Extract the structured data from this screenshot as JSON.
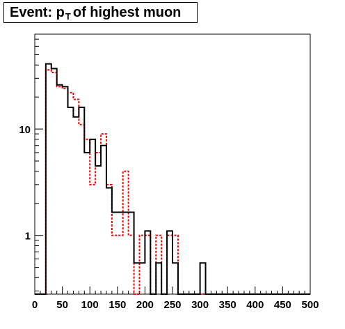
{
  "chart_data": {
    "type": "histogram",
    "title": {
      "prefix": "Event: p",
      "sub": "T",
      "suffix": "of highest muon"
    },
    "xlabel": "",
    "ylabel": "",
    "log_y": true,
    "xlim": [
      0,
      500
    ],
    "ylim": [
      0.28,
      78
    ],
    "x_ticks": [
      0,
      50,
      100,
      150,
      200,
      250,
      300,
      350,
      400,
      450,
      500
    ],
    "x_tick_labels": [
      "0",
      "50",
      "100",
      "150",
      "200",
      "250",
      "300",
      "350",
      "400",
      "450",
      "500"
    ],
    "y_ticks": [
      1,
      10
    ],
    "y_tick_labels": [
      "1",
      "10"
    ],
    "grid": false,
    "bin_edges": [
      0,
      10,
      20,
      30,
      40,
      50,
      60,
      70,
      80,
      90,
      100,
      110,
      120,
      130,
      140,
      150,
      160,
      170,
      180,
      190,
      200,
      210,
      220,
      230,
      240,
      250,
      260,
      270,
      280,
      290,
      300,
      310,
      320,
      330,
      340,
      350,
      360,
      370,
      380,
      390,
      400,
      410,
      420,
      430,
      440,
      450,
      460,
      470,
      480,
      490,
      500
    ],
    "series": [
      {
        "name": "",
        "color": "#000000",
        "style": "solid",
        "values": [
          0,
          0,
          41,
          37,
          26,
          25,
          16,
          13,
          16,
          6,
          8,
          4.5,
          7,
          2.8,
          1.65,
          1.65,
          1.65,
          1.65,
          0.55,
          0.55,
          1.1,
          0,
          0.55,
          0,
          1.1,
          0.55,
          0,
          0,
          0,
          0,
          0.55,
          0,
          0,
          0,
          0,
          0,
          0,
          0,
          0,
          0,
          0,
          0,
          0,
          0,
          0,
          0,
          0,
          0,
          0,
          0
        ]
      },
      {
        "name": "",
        "color": "#ff0000",
        "style": "dotted",
        "values": [
          0,
          0,
          36,
          34,
          25,
          24,
          22,
          19,
          11,
          8,
          3,
          6,
          9,
          3,
          1,
          1,
          4,
          1,
          0,
          1,
          1,
          0,
          1,
          0,
          1,
          1,
          0,
          0,
          0,
          0,
          0,
          0,
          0,
          0,
          0,
          0,
          0,
          0,
          0,
          0,
          0,
          0,
          0,
          0,
          0,
          0,
          0,
          0,
          0,
          0
        ]
      }
    ]
  }
}
